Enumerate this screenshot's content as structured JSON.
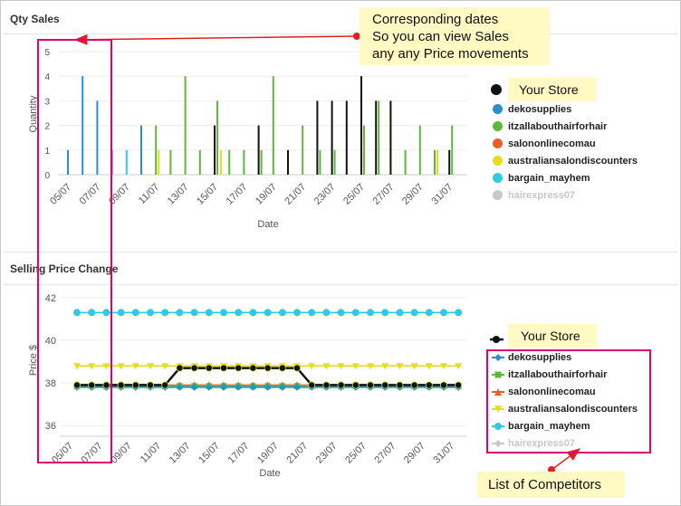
{
  "panels": {
    "qty_title": "Qty Sales",
    "price_title": "Selling Price Change"
  },
  "colors": {
    "dekosupplies": "#2a8fcf",
    "itzallabouthairforhair": "#5fb83a",
    "salononlinecomau": "#ef5c2a",
    "australiansalondiscounters": "#e3de20",
    "bargain_mayhem": "#2fcbe0",
    "hairexpress07": "#c8c8c8",
    "your_store": "#111111",
    "annotation": "#e0006e",
    "callout_bg": "#fff9c4",
    "arrow": "#e02020"
  },
  "callouts": {
    "dates_line1": "Corresponding dates",
    "dates_line2": "So you can view Sales",
    "dates_line3": "any any Price movements",
    "your_store_top": "Your Store",
    "your_store_bottom": "Your Store",
    "competitors": "List of Competitors"
  },
  "legend": {
    "qty": [
      "dekosupplies",
      "itzallabouthairforhair",
      "salononlinecomau",
      "australiansalondiscounters",
      "bargain_mayhem",
      "hairexpress07"
    ],
    "price": [
      "dekosupplies",
      "itzallabouthairforhair",
      "salononlinecomau",
      "australiansalondiscounters",
      "bargain_mayhem",
      "hairexpress07"
    ]
  },
  "chart_data": [
    {
      "type": "bar",
      "title": "Qty Sales",
      "xlabel": "Date",
      "ylabel": "Quantity",
      "ylim": [
        0,
        5
      ],
      "yticks": [
        0,
        1,
        2,
        3,
        4,
        5
      ],
      "x_tick_labels": [
        "05/07",
        "07/07",
        "09/07",
        "11/07",
        "13/07",
        "15/07",
        "17/07",
        "19/07",
        "21/07",
        "23/07",
        "25/07",
        "27/07",
        "29/07",
        "31/07"
      ],
      "grid": "horizontal",
      "series": [
        {
          "name": "Your Store",
          "color_key": "your_store",
          "points": [
            [
              "15/07",
              2
            ],
            [
              "18/07",
              2
            ],
            [
              "20/07",
              1
            ],
            [
              "22/07",
              3
            ],
            [
              "23/07",
              3
            ],
            [
              "24/07",
              3
            ],
            [
              "25/07",
              4
            ],
            [
              "26/07",
              3
            ],
            [
              "27/07",
              3
            ],
            [
              "31/07",
              1
            ]
          ]
        },
        {
          "name": "dekosupplies",
          "color_key": "dekosupplies",
          "points": [
            [
              "05/07",
              1
            ],
            [
              "06/07",
              4
            ],
            [
              "07/07",
              3
            ],
            [
              "08/07",
              1
            ],
            [
              "10/07",
              2
            ]
          ]
        },
        {
          "name": "itzallabouthairforhair",
          "color_key": "itzallabouthairforhair",
          "points": [
            [
              "11/07",
              2
            ],
            [
              "12/07",
              1
            ],
            [
              "13/07",
              4
            ],
            [
              "14/07",
              1
            ],
            [
              "15/07",
              3
            ],
            [
              "16/07",
              1
            ],
            [
              "17/07",
              1
            ],
            [
              "18/07",
              1
            ],
            [
              "19/07",
              4
            ],
            [
              "21/07",
              2
            ],
            [
              "22/07",
              1
            ],
            [
              "23/07",
              1
            ],
            [
              "25/07",
              2
            ],
            [
              "26/07",
              3
            ],
            [
              "28/07",
              1
            ],
            [
              "29/07",
              2
            ],
            [
              "30/07",
              1
            ],
            [
              "31/07",
              2
            ]
          ]
        },
        {
          "name": "salononlinecomau",
          "color_key": "salononlinecomau",
          "points": []
        },
        {
          "name": "australiansalondiscounters",
          "color_key": "australiansalondiscounters",
          "points": [
            [
              "11/07",
              1
            ],
            [
              "15/07",
              1
            ],
            [
              "30/07",
              1
            ]
          ]
        },
        {
          "name": "bargain_mayhem",
          "color_key": "bargain_mayhem",
          "points": [
            [
              "09/07",
              1
            ]
          ]
        },
        {
          "name": "hairexpress07",
          "color_key": "hairexpress07",
          "points": []
        }
      ]
    },
    {
      "type": "line",
      "title": "Selling Price Change",
      "xlabel": "Date",
      "ylabel": "Price $",
      "ylim": [
        35.5,
        42.5
      ],
      "yticks": [
        36,
        38,
        40,
        42
      ],
      "x_tick_labels": [
        "05/07",
        "07/07",
        "09/07",
        "11/07",
        "13/07",
        "15/07",
        "17/07",
        "19/07",
        "21/07",
        "23/07",
        "25/07",
        "27/07",
        "29/07",
        "31/07"
      ],
      "x_dates": [
        "05/07",
        "06/07",
        "07/07",
        "08/07",
        "09/07",
        "10/07",
        "11/07",
        "12/07",
        "13/07",
        "14/07",
        "15/07",
        "16/07",
        "17/07",
        "18/07",
        "19/07",
        "20/07",
        "21/07",
        "22/07",
        "23/07",
        "24/07",
        "25/07",
        "26/07",
        "27/07",
        "28/07",
        "29/07",
        "30/07",
        "31/07"
      ],
      "grid": "horizontal",
      "series": [
        {
          "name": "Your Store",
          "color_key": "your_store",
          "marker": "dot",
          "values": [
            37.9,
            37.9,
            37.9,
            37.9,
            37.9,
            37.9,
            37.9,
            38.7,
            38.7,
            38.7,
            38.7,
            38.7,
            38.7,
            38.7,
            38.7,
            38.7,
            37.9,
            37.9,
            37.9,
            37.9,
            37.9,
            37.9,
            37.9,
            37.9,
            37.9,
            37.9,
            37.9
          ]
        },
        {
          "name": "dekosupplies",
          "color_key": "dekosupplies",
          "marker": "diamond",
          "values": [
            37.8,
            37.8,
            37.8,
            37.8,
            37.8,
            37.8,
            37.8,
            37.8,
            37.8,
            37.8,
            37.8,
            37.8,
            37.8,
            37.8,
            37.8,
            37.8,
            37.8,
            37.8,
            37.8,
            37.8,
            37.8,
            37.8,
            37.8,
            37.8,
            37.8,
            37.8,
            37.8
          ]
        },
        {
          "name": "itzallabouthairforhair",
          "color_key": "itzallabouthairforhair",
          "marker": "square",
          "values": [
            37.85,
            37.85,
            37.85,
            37.85,
            37.85,
            37.85,
            37.85,
            37.85,
            37.85,
            37.85,
            37.85,
            37.85,
            37.85,
            37.85,
            37.85,
            37.85,
            37.85,
            37.85,
            37.85,
            37.85,
            37.85,
            37.85,
            37.85,
            37.85,
            37.85,
            37.85,
            37.85
          ]
        },
        {
          "name": "salononlinecomau",
          "color_key": "salononlinecomau",
          "marker": "triangle",
          "values": [
            37.9,
            37.9,
            37.9,
            37.9,
            37.9,
            37.9,
            37.9,
            37.9,
            37.9,
            37.9,
            37.9,
            37.9,
            37.9,
            37.9,
            37.9,
            37.9,
            37.9,
            37.9,
            37.9,
            37.9,
            37.9,
            37.9,
            37.9,
            37.9,
            37.9,
            37.9,
            37.9
          ]
        },
        {
          "name": "australiansalondiscounters",
          "color_key": "australiansalondiscounters",
          "marker": "triangle-down",
          "values": [
            38.8,
            38.8,
            38.8,
            38.8,
            38.8,
            38.8,
            38.8,
            38.8,
            38.8,
            38.8,
            38.8,
            38.8,
            38.8,
            38.8,
            38.8,
            38.8,
            38.8,
            38.8,
            38.8,
            38.8,
            38.8,
            38.8,
            38.8,
            38.8,
            38.8,
            38.8,
            38.8
          ]
        },
        {
          "name": "bargain_mayhem",
          "color_key": "bargain_mayhem",
          "marker": "dot",
          "values": [
            41.3,
            41.3,
            41.3,
            41.3,
            41.3,
            41.3,
            41.3,
            41.3,
            41.3,
            41.3,
            41.3,
            41.3,
            41.3,
            41.3,
            41.3,
            41.3,
            41.3,
            41.3,
            41.3,
            41.3,
            41.3,
            41.3,
            41.3,
            41.3,
            41.3,
            41.3,
            41.3
          ]
        },
        {
          "name": "hairexpress07",
          "color_key": "hairexpress07",
          "marker": "diamond",
          "values": []
        }
      ]
    }
  ]
}
